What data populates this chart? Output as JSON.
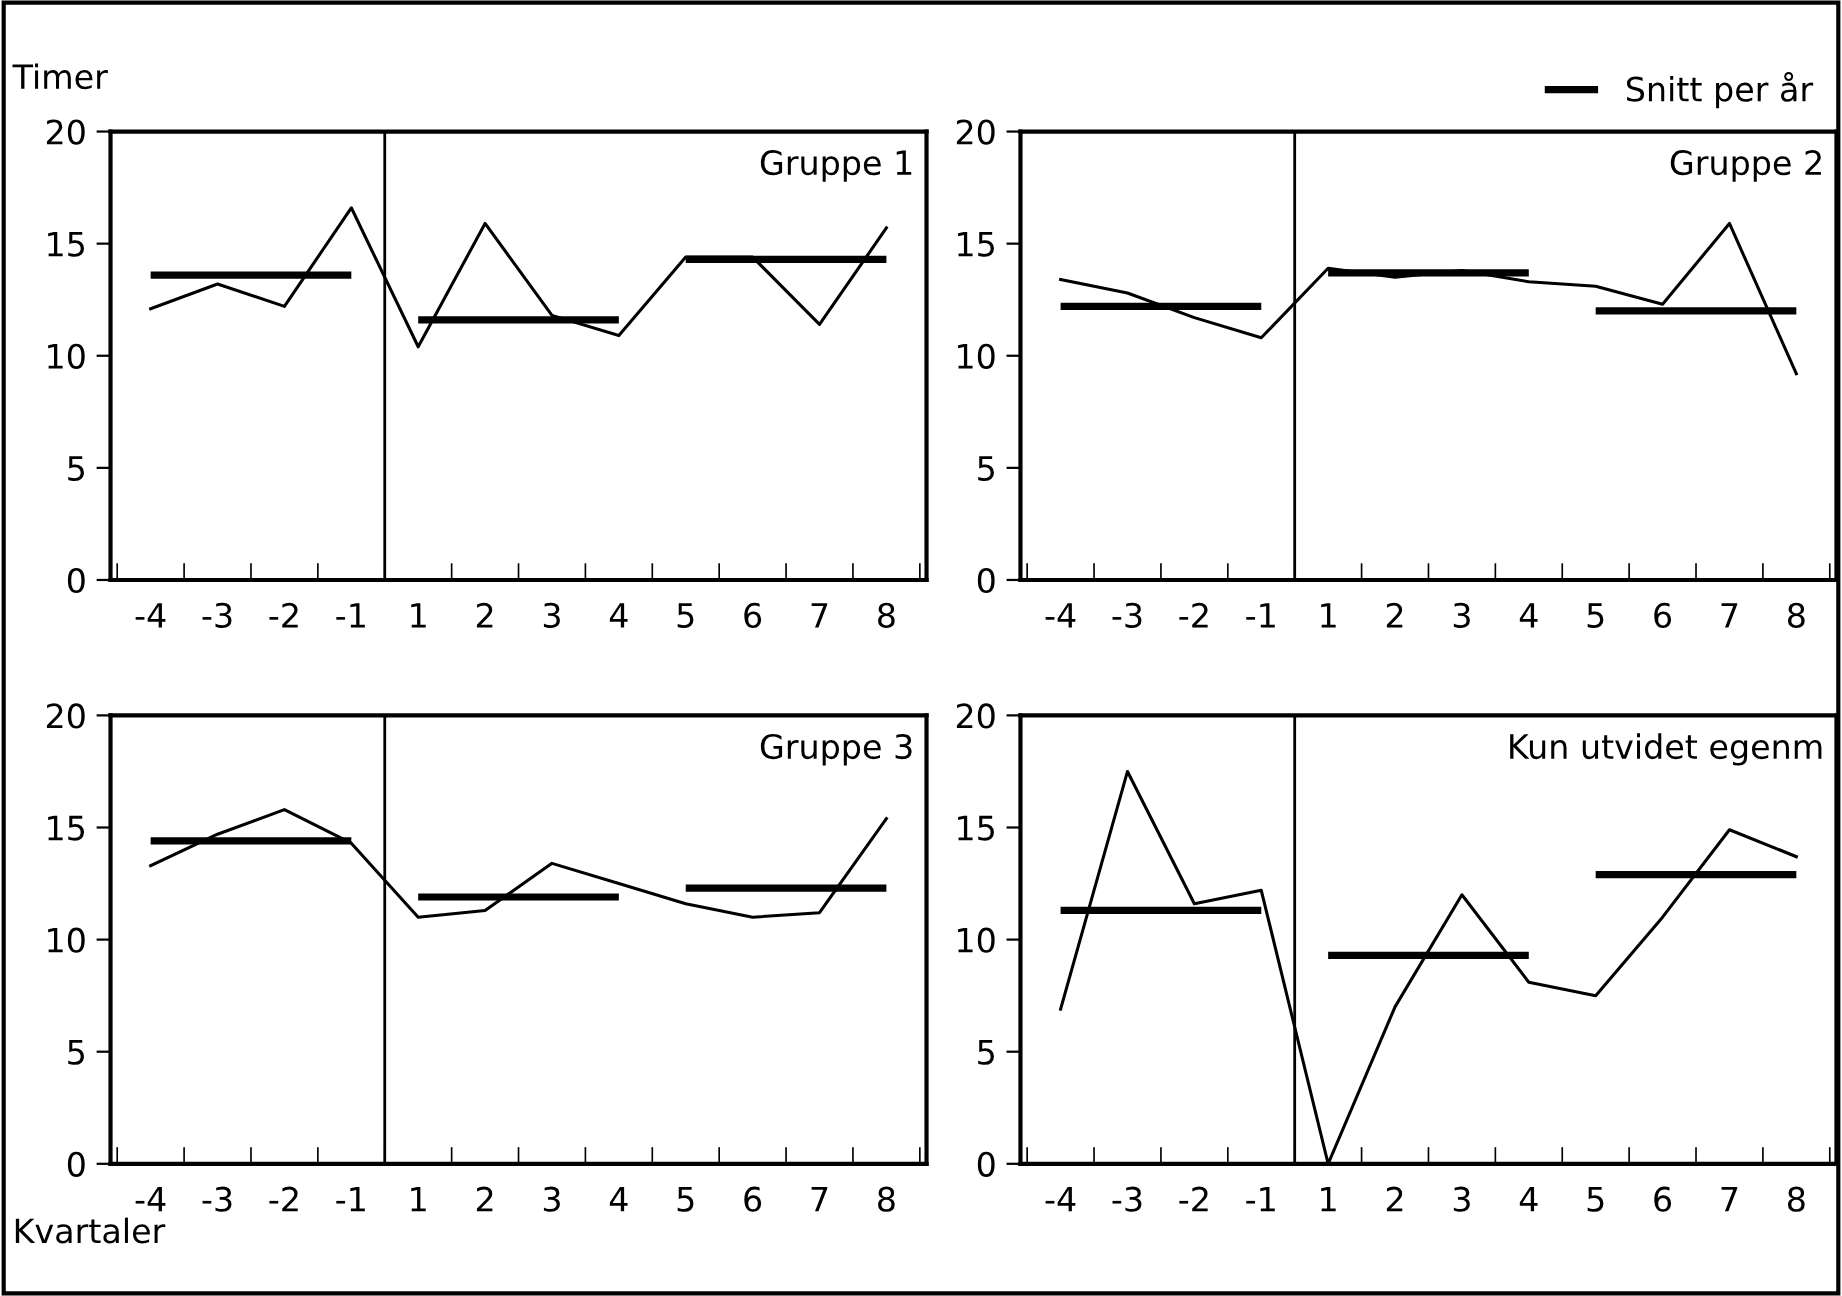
{
  "chart_data": [
    {
      "type": "line",
      "title": "Gruppe 1",
      "ylabel": "Timer",
      "categories": [
        "-4",
        "-3",
        "-2",
        "-1",
        "1",
        "2",
        "3",
        "4",
        "5",
        "6",
        "7",
        "8"
      ],
      "ylim": [
        0,
        20
      ],
      "yticks": [
        0,
        5,
        10,
        15,
        20
      ],
      "grid": false,
      "legend": false,
      "series": [
        {
          "color": "#000000",
          "values": [
            12.1,
            13.2,
            12.2,
            16.6,
            10.4,
            15.9,
            11.8,
            10.9,
            14.4,
            14.4,
            11.4,
            15.7
          ]
        },
        {
          "color": "#000000",
          "values": [
            13.6,
            13.6,
            13.6,
            13.6,
            11.6,
            11.6,
            11.6,
            11.6,
            14.3,
            14.3,
            14.3,
            14.3
          ]
        }
      ]
    },
    {
      "type": "line",
      "title": "Gruppe 2",
      "categories": [
        "-4",
        "-3",
        "-2",
        "-1",
        "1",
        "2",
        "3",
        "4",
        "5",
        "6",
        "7",
        "8"
      ],
      "ylim": [
        0,
        20
      ],
      "yticks": [
        0,
        5,
        10,
        15,
        20
      ],
      "grid": false,
      "legend": "top right",
      "series": [
        {
          "color": "#000000",
          "values": [
            13.4,
            12.8,
            11.7,
            10.8,
            13.9,
            13.5,
            13.8,
            13.3,
            13.1,
            12.3,
            15.9,
            9.2
          ]
        },
        {
          "name": "Snitt per år",
          "color": "#000000",
          "values": [
            12.2,
            12.2,
            12.2,
            12.2,
            13.7,
            13.7,
            13.7,
            13.7,
            12.0,
            12.0,
            12.0,
            12.0
          ]
        }
      ]
    },
    {
      "type": "line",
      "title": "Gruppe 3",
      "xlabel": "Kvartaler",
      "categories": [
        "-4",
        "-3",
        "-2",
        "-1",
        "1",
        "2",
        "3",
        "4",
        "5",
        "6",
        "7",
        "8"
      ],
      "ylim": [
        0,
        20
      ],
      "yticks": [
        0,
        5,
        10,
        15,
        20
      ],
      "grid": false,
      "legend": false,
      "series": [
        {
          "color": "#000000",
          "values": [
            13.3,
            14.7,
            15.8,
            14.3,
            11.0,
            11.3,
            13.4,
            12.5,
            11.6,
            11.0,
            11.2,
            15.4
          ]
        },
        {
          "color": "#000000",
          "values": [
            14.4,
            14.4,
            14.4,
            14.4,
            11.9,
            11.9,
            11.9,
            11.9,
            12.3,
            12.3,
            12.3,
            12.3
          ]
        }
      ]
    },
    {
      "type": "line",
      "title": "Kun utvidet egenm",
      "categories": [
        "-4",
        "-3",
        "-2",
        "-1",
        "1",
        "2",
        "3",
        "4",
        "5",
        "6",
        "7",
        "8"
      ],
      "ylim": [
        0,
        20
      ],
      "yticks": [
        0,
        5,
        10,
        15,
        20
      ],
      "grid": false,
      "legend": false,
      "series": [
        {
          "color": "#000000",
          "values": [
            6.9,
            17.5,
            11.6,
            12.2,
            0,
            7.0,
            12.0,
            8.1,
            7.5,
            11.0,
            14.9,
            13.7
          ]
        },
        {
          "color": "#000000",
          "values": [
            11.3,
            11.3,
            11.3,
            11.3,
            9.3,
            9.3,
            9.3,
            9.3,
            12.9,
            12.9,
            12.9,
            12.9
          ]
        }
      ]
    }
  ]
}
